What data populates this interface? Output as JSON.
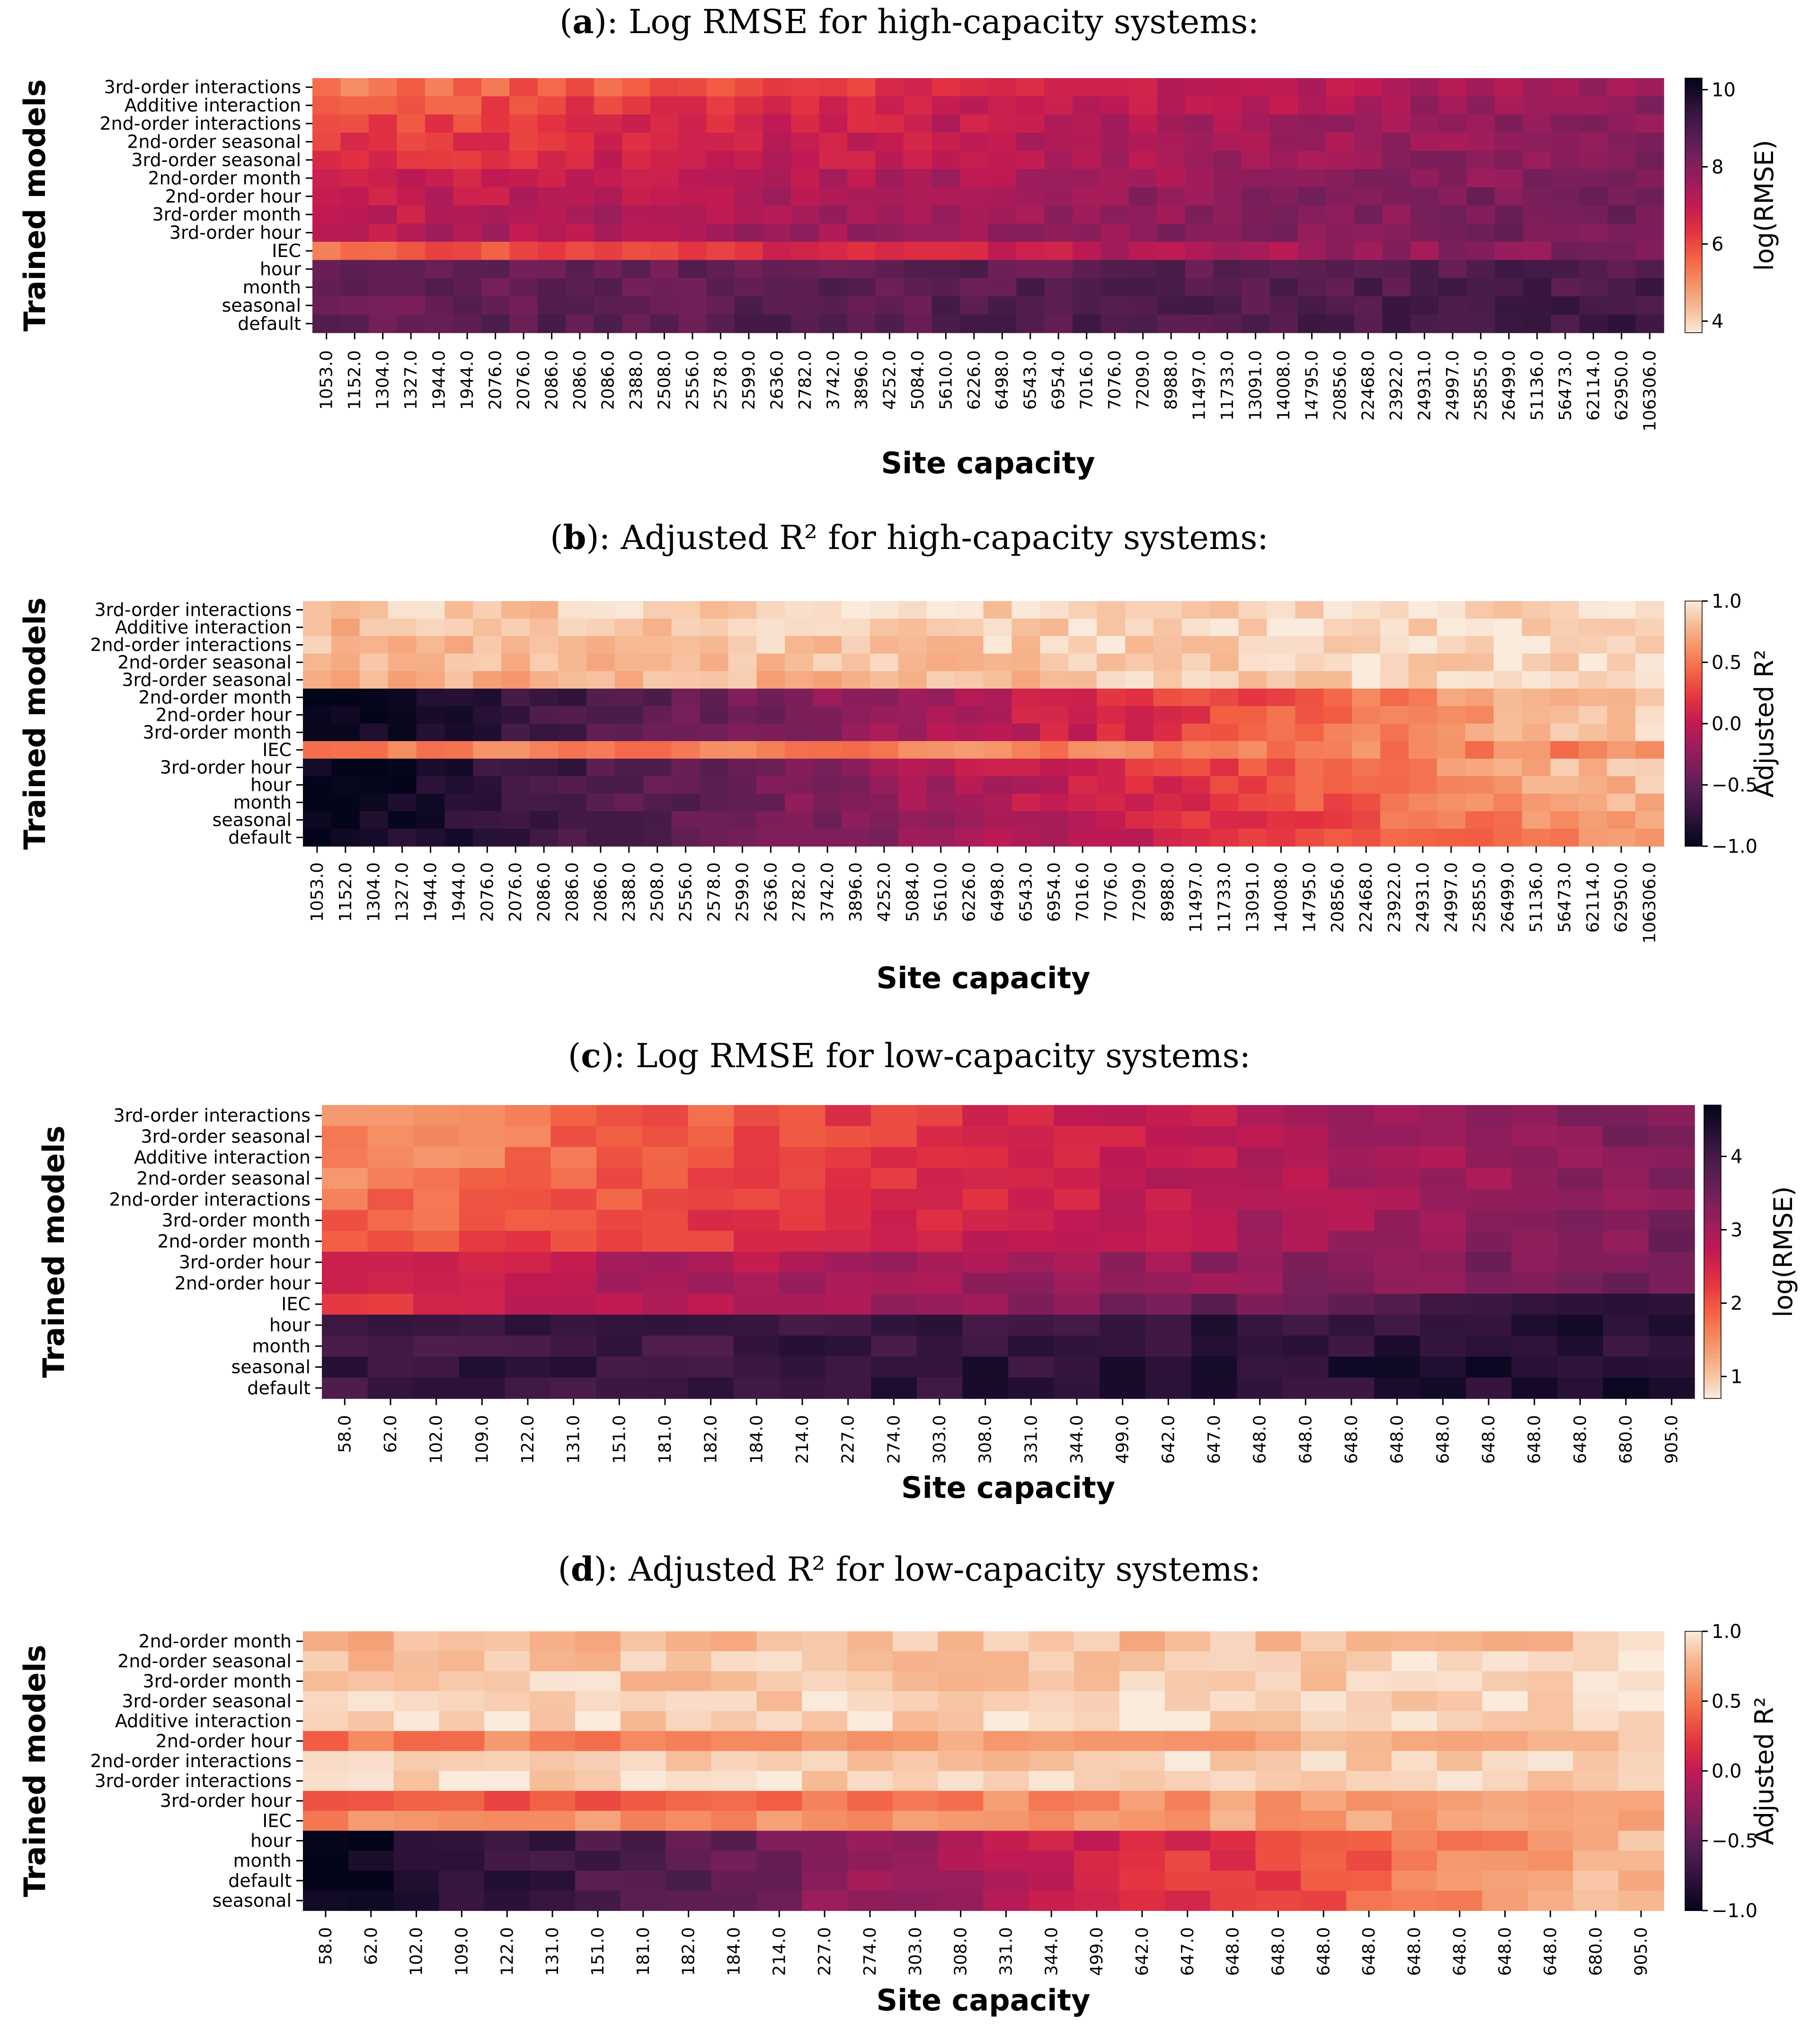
{
  "chart_data": [
    {
      "panel": "a",
      "type": "heatmap",
      "title_letter": "a",
      "title_text": "): Log RMSE for high-capacity systems:",
      "xlabel": "Site capacity",
      "ylabel": "Trained models",
      "colorbar_label": "log(RMSE)",
      "colormap": "rocket_r",
      "vmin": 3.7,
      "vmax": 10.3,
      "colorbar_ticks": [
        "4",
        "6",
        "8",
        "10"
      ],
      "colorbar_tick_values": [
        4,
        6,
        8,
        10
      ],
      "rows": [
        "3rd-order interactions",
        "Additive interaction",
        "2nd-order interactions",
        "2nd-order seasonal",
        "3rd-order seasonal",
        "2nd-order month",
        "2nd-order hour",
        "3rd-order month",
        "3rd-order hour",
        "IEC",
        "hour",
        "month",
        "seasonal",
        "default"
      ],
      "x_tick_labels": [
        "1053.0",
        "1152.0",
        "1304.0",
        "1327.0",
        "1944.0",
        "1944.0",
        "2076.0",
        "2076.0",
        "2086.0",
        "2086.0",
        "2086.0",
        "2388.0",
        "2508.0",
        "2556.0",
        "2578.0",
        "2599.0",
        "2636.0",
        "2782.0",
        "3742.0",
        "3896.0",
        "4252.0",
        "5084.0",
        "5610.0",
        "6226.0",
        "6498.0",
        "6543.0",
        "6954.0",
        "7016.0",
        "7076.0",
        "7209.0",
        "8988.0",
        "11497.0",
        "11733.0",
        "13091.0",
        "14008.0",
        "14795.0",
        "20856.0",
        "22468.0",
        "23922.0",
        "24931.0",
        "24997.0",
        "25855.0",
        "26499.0",
        "51136.0",
        "56473.0",
        "62114.0",
        "62950.0",
        "106306.0"
      ],
      "row_base": [
        5.3,
        5.7,
        6.0,
        6.2,
        6.3,
        6.6,
        6.9,
        7.0,
        7.1,
        5.6,
        8.4,
        8.5,
        8.5,
        8.6
      ],
      "row_slope": [
        2.5,
        2.2,
        2.0,
        1.8,
        1.8,
        1.6,
        1.4,
        1.3,
        1.3,
        2.6,
        0.5,
        0.5,
        0.6,
        0.6
      ]
    },
    {
      "panel": "b",
      "type": "heatmap",
      "title_letter": "b",
      "title_text": "): Adjusted R² for high-capacity systems:",
      "xlabel": "Site capacity",
      "ylabel": "Trained models",
      "colorbar_label": "Adjusted R²",
      "colormap": "rocket",
      "vmin": -1.0,
      "vmax": 1.0,
      "colorbar_ticks": [
        "1.0",
        "0.5",
        "0.0",
        "−0.5",
        "−1.0"
      ],
      "colorbar_tick_values": [
        1.0,
        0.5,
        0.0,
        -0.5,
        -1.0
      ],
      "rows": [
        "3rd-order interactions",
        "Additive interaction",
        "2nd-order interactions",
        "2nd-order seasonal",
        "3rd-order seasonal",
        "2nd-order month",
        "2nd-order hour",
        "3rd-order month",
        "IEC",
        "3rd-order hour",
        "hour",
        "month",
        "seasonal",
        "default"
      ],
      "x_tick_labels": [
        "1053.0",
        "1152.0",
        "1304.0",
        "1327.0",
        "1944.0",
        "1944.0",
        "2076.0",
        "2076.0",
        "2086.0",
        "2086.0",
        "2086.0",
        "2388.0",
        "2508.0",
        "2556.0",
        "2578.0",
        "2599.0",
        "2636.0",
        "2782.0",
        "3742.0",
        "3896.0",
        "4252.0",
        "5084.0",
        "5610.0",
        "6226.0",
        "6498.0",
        "6543.0",
        "6954.0",
        "7016.0",
        "7076.0",
        "7209.0",
        "8988.0",
        "11497.0",
        "11733.0",
        "13091.0",
        "14008.0",
        "14795.0",
        "20856.0",
        "22468.0",
        "23922.0",
        "24931.0",
        "24997.0",
        "25855.0",
        "26499.0",
        "51136.0",
        "56473.0",
        "62114.0",
        "62950.0",
        "106306.0"
      ],
      "row_base": [
        0.85,
        0.8,
        0.8,
        0.75,
        0.7,
        -1.0,
        -1.0,
        -1.0,
        0.55,
        -1.0,
        -1.0,
        -1.0,
        -1.0,
        -1.0
      ],
      "row_slope": [
        0.1,
        0.15,
        0.15,
        0.2,
        0.25,
        1.9,
        1.9,
        1.9,
        0.0,
        1.9,
        1.85,
        1.8,
        1.75,
        1.7
      ]
    },
    {
      "panel": "c",
      "type": "heatmap",
      "title_letter": "c",
      "title_text": "): Log RMSE for low-capacity systems:",
      "xlabel": "Site capacity",
      "ylabel": "Trained models",
      "colorbar_label": "log(RMSE)",
      "colormap": "rocket_r",
      "vmin": 0.7,
      "vmax": 4.7,
      "colorbar_ticks": [
        "1",
        "2",
        "3",
        "4"
      ],
      "colorbar_tick_values": [
        1,
        2,
        3,
        4
      ],
      "rows": [
        "3rd-order interactions",
        "3rd-order seasonal",
        "Additive interaction",
        "2nd-order seasonal",
        "2nd-order interactions",
        "3rd-order month",
        "2nd-order month",
        "3rd-order hour",
        "2nd-order hour",
        "IEC",
        "hour",
        "month",
        "seasonal",
        "default"
      ],
      "x_tick_labels": [
        "58.0",
        "62.0",
        "102.0",
        "109.0",
        "122.0",
        "131.0",
        "151.0",
        "181.0",
        "182.0",
        "184.0",
        "214.0",
        "227.0",
        "274.0",
        "303.0",
        "308.0",
        "331.0",
        "344.0",
        "499.0",
        "642.0",
        "647.0",
        "648.0",
        "648.0",
        "648.0",
        "648.0",
        "648.0",
        "648.0",
        "648.0",
        "648.0",
        "680.0",
        "905.0"
      ],
      "row_base": [
        1.4,
        1.5,
        1.5,
        1.6,
        1.7,
        1.8,
        1.9,
        2.6,
        2.7,
        2.3,
        4.0,
        4.0,
        4.1,
        4.1
      ],
      "row_slope": [
        2.0,
        1.9,
        1.9,
        1.8,
        1.7,
        1.6,
        1.5,
        0.9,
        0.8,
        1.9,
        0.3,
        0.3,
        0.3,
        0.3
      ]
    },
    {
      "panel": "d",
      "type": "heatmap",
      "title_letter": "d",
      "title_text": "): Adjusted R² for low-capacity systems:",
      "xlabel": "Site capacity",
      "ylabel": "Trained models",
      "colorbar_label": "Adjusted R²",
      "colormap": "rocket",
      "vmin": -1.0,
      "vmax": 1.0,
      "colorbar_ticks": [
        "1.0",
        "0.5",
        "0.0",
        "−0.5",
        "−1.0"
      ],
      "colorbar_tick_values": [
        1.0,
        0.5,
        0.0,
        -0.5,
        -1.0
      ],
      "rows": [
        "2nd-order month",
        "2nd-order seasonal",
        "3rd-order month",
        "3rd-order seasonal",
        "Additive interaction",
        "2nd-order hour",
        "2nd-order interactions",
        "3rd-order interactions",
        "3rd-order hour",
        "IEC",
        "hour",
        "month",
        "default",
        "seasonal"
      ],
      "x_tick_labels": [
        "58.0",
        "62.0",
        "102.0",
        "109.0",
        "122.0",
        "131.0",
        "151.0",
        "181.0",
        "182.0",
        "184.0",
        "214.0",
        "227.0",
        "274.0",
        "303.0",
        "308.0",
        "331.0",
        "344.0",
        "499.0",
        "642.0",
        "647.0",
        "648.0",
        "648.0",
        "648.0",
        "648.0",
        "648.0",
        "648.0",
        "648.0",
        "648.0",
        "680.0",
        "905.0"
      ],
      "row_base": [
        0.8,
        0.85,
        0.85,
        0.88,
        0.9,
        0.5,
        0.85,
        0.9,
        0.3,
        0.6,
        -1.0,
        -1.0,
        -1.0,
        -1.0
      ],
      "row_slope": [
        0.05,
        0.05,
        0.05,
        0.05,
        0.05,
        0.3,
        0.05,
        0.03,
        0.5,
        0.1,
        1.8,
        1.8,
        1.8,
        1.8
      ]
    }
  ]
}
